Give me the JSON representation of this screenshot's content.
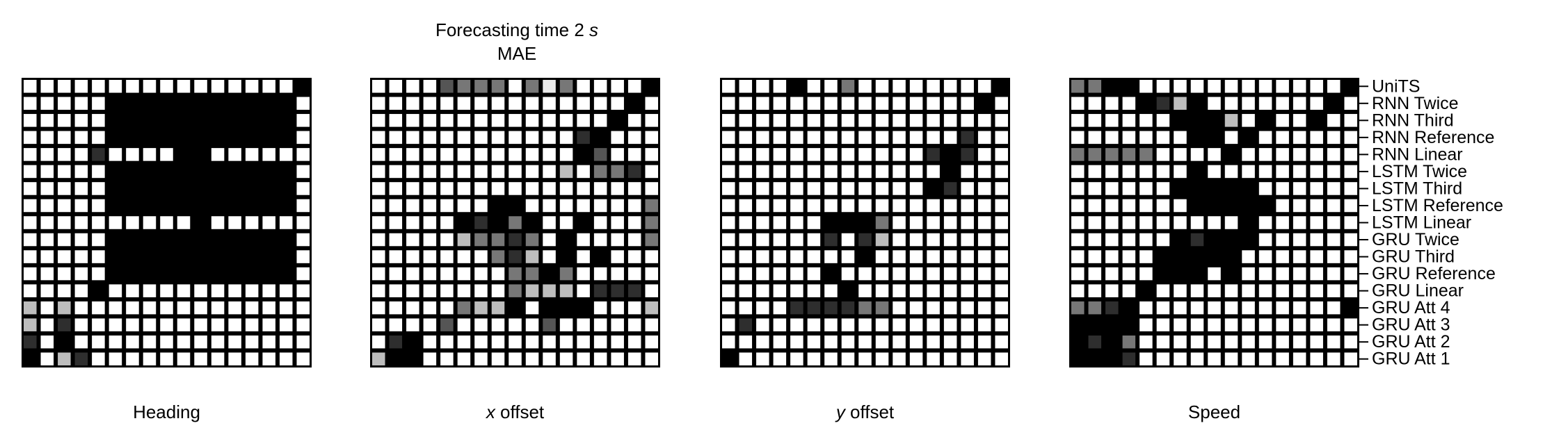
{
  "chart_data": {
    "type": "heatmap",
    "title_line1_prefix": "Forecasting time 2 ",
    "title_line1_unit": "s",
    "title_line2": "MAE",
    "models": [
      "UniTS",
      "RNN Twice",
      "RNN Third",
      "RNN Reference",
      "RNN Linear",
      "LSTM Twice",
      "LSTM Third",
      "LSTM Reference",
      "LSTM Linear",
      "GRU Twice",
      "GRU Third",
      "GRU Reference",
      "GRU Linear",
      "GRU Att 4",
      "GRU Att 3",
      "GRU Att 2",
      "GRU Att 1"
    ],
    "value_scale": "0 = white (no significant difference), 1 = black",
    "panels": [
      {
        "label": "Heading",
        "label_var": "",
        "rows": [
          "00000000000000001",
          "00000111111111110",
          "00000111111111110",
          "00000111111111110",
          "00002000011000000",
          "00000111111111110",
          "00000111111111110",
          "00000111111111110",
          "00000000001000000",
          "00000111111111110",
          "00000111111111110",
          "00000111111111110",
          "00001000000000000",
          "40400000000000000",
          "40200000000000000",
          "20100000000000000",
          "10420000000000000"
        ]
      },
      {
        "label": " offset",
        "label_var": "x",
        "rows": [
          "00006333035300001",
          "00000000000000010",
          "00000000000000100",
          "00000000000021000",
          "00000000000016000",
          "00000000000403320",
          "00000000000000000",
          "00000001100000003",
          "00000121310010003",
          "00000433230100003",
          "00000003240101000",
          "00000000331300000",
          "00000000344402220",
          "00000344101110004",
          "00006000006000000",
          "02100000000000000",
          "41100000000000000"
        ]
      },
      {
        "label": " offset",
        "label_var": "y",
        "rows": [
          "00001003000000001",
          "00000000000000010",
          "00000000000000000",
          "00000000000000200",
          "00000000000021200",
          "00000000000001000",
          "00000000000012000",
          "00000000000000000",
          "00000011130000000",
          "00000020240000000",
          "00000000100000000",
          "00000010000000000",
          "00000001000000000",
          "00002222330000000",
          "02000000000000000",
          "00000000000000000",
          "10000000000000000"
        ]
      },
      {
        "label": "Speed",
        "label_var": "",
        "rows": [
          "33110000000000001",
          "00001241000000010",
          "00000011140100100",
          "00000001101000000",
          "33333000010000000",
          "00000001000000000",
          "00000011111000000",
          "00000001111100000",
          "00000000001000000",
          "00000012111000000",
          "00000111110000000",
          "00000111010000000",
          "00001000000000000",
          "33210000000000001",
          "11110000000000000",
          "12130000000000000",
          "11120000000000000"
        ]
      }
    ]
  }
}
